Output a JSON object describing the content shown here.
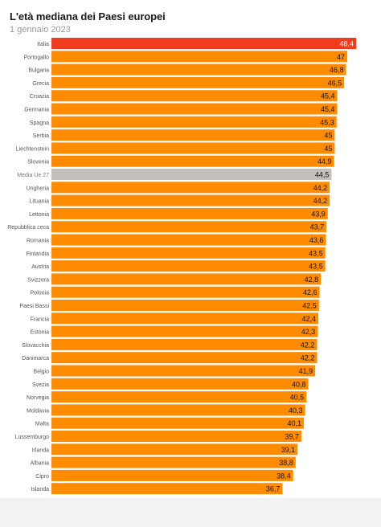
{
  "header": {
    "title": "L'età mediana dei Paesi europei",
    "subtitle": "1 gennaio 2023"
  },
  "colors": {
    "default": "#ff8c00",
    "top": "#f03c1e",
    "average": "#c3c0bc",
    "label_on_top": "#ffffff",
    "label_default": "#111111"
  },
  "chart_data": {
    "type": "bar",
    "orientation": "horizontal",
    "title": "L'età mediana dei Paesi europei",
    "subtitle": "1 gennaio 2023",
    "xlim": [
      0,
      48.4
    ],
    "grid": false,
    "categories": [
      "Italia",
      "Portogallo",
      "Bulgaria",
      "Grecia",
      "Croazia",
      "Germania",
      "Spagna",
      "Serbia",
      "Liechtenstein",
      "Slovenia",
      "Media Ue 27",
      "Ungheria",
      "Lituania",
      "Lettonia",
      "Repubblica ceca",
      "Romania",
      "Finlandia",
      "Austria",
      "Svizzera",
      "Polonia",
      "Paesi Bassi",
      "Francia",
      "Estonia",
      "Slovacchia",
      "Danimarca",
      "Belgio",
      "Svezia",
      "Norvegia",
      "Moldavia",
      "Malta",
      "Lussemburgo",
      "Irlanda",
      "Albania",
      "Cipro",
      "Islanda"
    ],
    "values": [
      48.4,
      47,
      46.8,
      46.5,
      45.4,
      45.4,
      45.3,
      45,
      45,
      44.9,
      44.5,
      44.2,
      44.2,
      43.9,
      43.7,
      43.6,
      43.5,
      43.5,
      42.8,
      42.6,
      42.5,
      42.4,
      42.3,
      42.2,
      42.2,
      41.9,
      40.8,
      40.5,
      40.3,
      40.1,
      39.7,
      39.1,
      38.8,
      38.4,
      36.7
    ],
    "value_labels": [
      "48,4",
      "47",
      "46,8",
      "46,5",
      "45,4",
      "45,4",
      "45,3",
      "45",
      "45",
      "44,9",
      "44,5",
      "44,2",
      "44,2",
      "43,9",
      "43,7",
      "43,6",
      "43,5",
      "43,5",
      "42,8",
      "42,6",
      "42,5",
      "42,4",
      "42,3",
      "42,2",
      "42,2",
      "41,9",
      "40,8",
      "40,5",
      "40,3",
      "40,1",
      "39,7",
      "39,1",
      "38,8",
      "38,4",
      "36,7"
    ],
    "highlight": {
      "Italia": "top",
      "Media Ue 27": "average"
    }
  }
}
